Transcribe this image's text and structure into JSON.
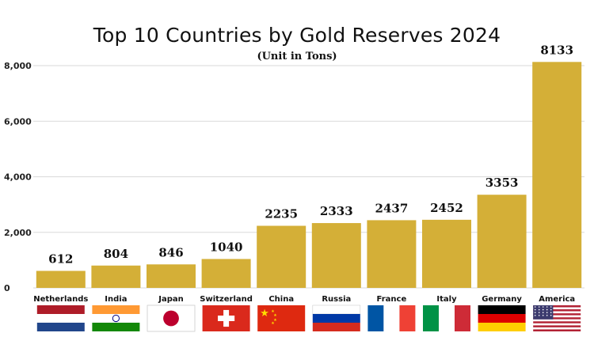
{
  "chart_data": {
    "type": "bar",
    "title": "Top 10 Countries by Gold Reserves 2024",
    "subtitle": "(Unit in Tons)",
    "categories": [
      "Netherlands",
      "India",
      "Japan",
      "Switzerland",
      "China",
      "Russia",
      "France",
      "Italy",
      "Germany",
      "America"
    ],
    "values": [
      612,
      804,
      846,
      1040,
      2235,
      2333,
      2437,
      2452,
      3353,
      8133
    ],
    "value_labels": [
      "612",
      "804",
      "846",
      "1040",
      "2235",
      "2333",
      "2437",
      "2452",
      "3353",
      "8133"
    ],
    "yticks": [
      0,
      2000,
      4000,
      6000,
      8000
    ],
    "ytick_labels": [
      "0",
      "2,000",
      "4,000",
      "6,000",
      "8,000"
    ],
    "ylim": [
      0,
      8000
    ],
    "grid": true,
    "bar_color": "#d4af37",
    "flags": [
      "netherlands-flag",
      "india-flag",
      "japan-flag",
      "switzerland-flag",
      "china-flag",
      "russia-flag",
      "france-flag",
      "italy-flag",
      "germany-flag",
      "usa-flag"
    ]
  }
}
